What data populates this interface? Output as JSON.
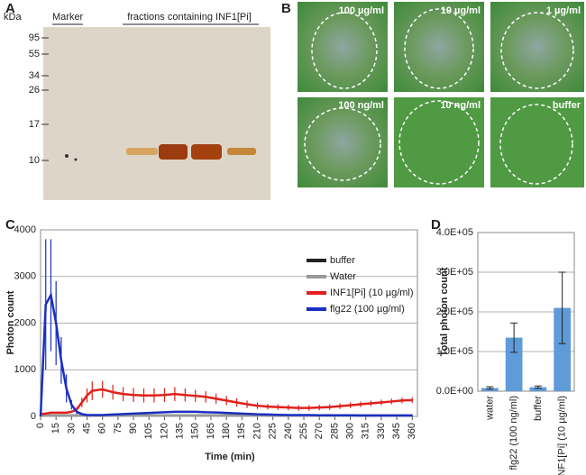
{
  "panel_labels": [
    "A",
    "B",
    "C",
    "D"
  ],
  "gel": {
    "unit": "kDa",
    "markers": [
      95,
      55,
      34,
      26,
      17,
      10
    ],
    "lane_labels": [
      "Marker",
      "fractions containing INF1[Pi]"
    ]
  },
  "leaves": {
    "labels": [
      "100 µg/ml",
      "10 µg/ml",
      "1 µg/ml",
      "100 ng/ml",
      "10 ng/ml",
      "buffer"
    ]
  },
  "chart_data": [
    {
      "type": "line",
      "xlabel": "Time (min)",
      "ylabel": "Photon count",
      "x": [
        0,
        5,
        10,
        15,
        20,
        25,
        30,
        35,
        40,
        45,
        50,
        60,
        70,
        80,
        90,
        100,
        110,
        120,
        130,
        140,
        150,
        160,
        170,
        180,
        190,
        200,
        210,
        220,
        230,
        240,
        250,
        260,
        270,
        280,
        290,
        300,
        310,
        320,
        330,
        340,
        350,
        360
      ],
      "xlim": [
        0,
        365
      ],
      "xticks": [
        0,
        15,
        30,
        45,
        60,
        75,
        90,
        105,
        120,
        135,
        150,
        165,
        180,
        195,
        210,
        225,
        240,
        255,
        270,
        285,
        300,
        315,
        330,
        345,
        360
      ],
      "ylim": [
        0,
        4000
      ],
      "yticks": [
        0,
        1000,
        2000,
        3000,
        4000
      ],
      "grid": true,
      "legend": "right",
      "series": [
        {
          "name": "buffer",
          "color": "#222222",
          "values": [
            20,
            20,
            20,
            20,
            20,
            20,
            20,
            20,
            20,
            20,
            20,
            20,
            20,
            20,
            20,
            20,
            20,
            20,
            20,
            20,
            20,
            20,
            20,
            20,
            20,
            20,
            20,
            20,
            20,
            20,
            20,
            20,
            20,
            20,
            20,
            20,
            20,
            20,
            20,
            20,
            20,
            20
          ]
        },
        {
          "name": "Water",
          "color": "#999999",
          "values": [
            15,
            15,
            15,
            15,
            15,
            15,
            15,
            15,
            15,
            15,
            15,
            15,
            15,
            15,
            15,
            15,
            15,
            15,
            15,
            15,
            15,
            15,
            15,
            15,
            15,
            15,
            15,
            15,
            15,
            15,
            15,
            15,
            15,
            15,
            15,
            15,
            15,
            15,
            15,
            15,
            15,
            15
          ]
        },
        {
          "name": "INF1[Pi] (10 µg/ml)",
          "color": "#e0201b",
          "values": [
            50,
            60,
            80,
            80,
            80,
            80,
            100,
            150,
            300,
            450,
            550,
            580,
            520,
            480,
            460,
            450,
            450,
            460,
            480,
            460,
            440,
            420,
            380,
            340,
            300,
            260,
            230,
            210,
            200,
            190,
            180,
            180,
            190,
            200,
            220,
            240,
            260,
            280,
            300,
            320,
            340,
            350
          ],
          "errors": [
            20,
            20,
            20,
            20,
            20,
            20,
            20,
            50,
            100,
            150,
            200,
            180,
            160,
            150,
            150,
            150,
            150,
            150,
            150,
            140,
            130,
            120,
            110,
            100,
            90,
            80,
            70,
            60,
            60,
            60,
            60,
            60,
            60,
            60,
            60,
            60,
            60,
            60,
            60,
            60,
            60,
            60
          ]
        },
        {
          "name": "flg22 (100 µg/ml)",
          "color": "#1a2fc0",
          "values": [
            0,
            2400,
            2600,
            2000,
            1200,
            600,
            250,
            100,
            50,
            30,
            30,
            30,
            40,
            50,
            60,
            70,
            80,
            90,
            100,
            100,
            100,
            90,
            85,
            75,
            65,
            55,
            45,
            40,
            35,
            30,
            30,
            30,
            25,
            25,
            25,
            25,
            20,
            20,
            20,
            20,
            20,
            20
          ],
          "errors": [
            0,
            1400,
            1200,
            900,
            500,
            300,
            100,
            50,
            20,
            20,
            20,
            20,
            20,
            20,
            20,
            20,
            20,
            20,
            20,
            20,
            20,
            20,
            20,
            20,
            20,
            20,
            20,
            20,
            20,
            20,
            20,
            20,
            20,
            20,
            20,
            20,
            20,
            20,
            20,
            20,
            20,
            20
          ]
        }
      ]
    },
    {
      "type": "bar",
      "ylabel": "Total photon count",
      "categories": [
        "water",
        "flg22 (100 ng/ml)",
        "buffer",
        "INF1[Pi] (10 µg/ml)"
      ],
      "values": [
        8000,
        135000,
        10000,
        210000
      ],
      "errors": [
        3000,
        37000,
        3000,
        90000
      ],
      "color": "#5f9bd8",
      "ylim": [
        0,
        400000
      ],
      "yticks": [
        {
          "value": 0,
          "label": "0.0E+00"
        },
        {
          "value": 100000,
          "label": "1.0E+05"
        },
        {
          "value": 200000,
          "label": "2.0E+05"
        },
        {
          "value": 300000,
          "label": "3.0E+05"
        },
        {
          "value": 400000,
          "label": "4.0E+05"
        }
      ],
      "grid": true
    }
  ]
}
